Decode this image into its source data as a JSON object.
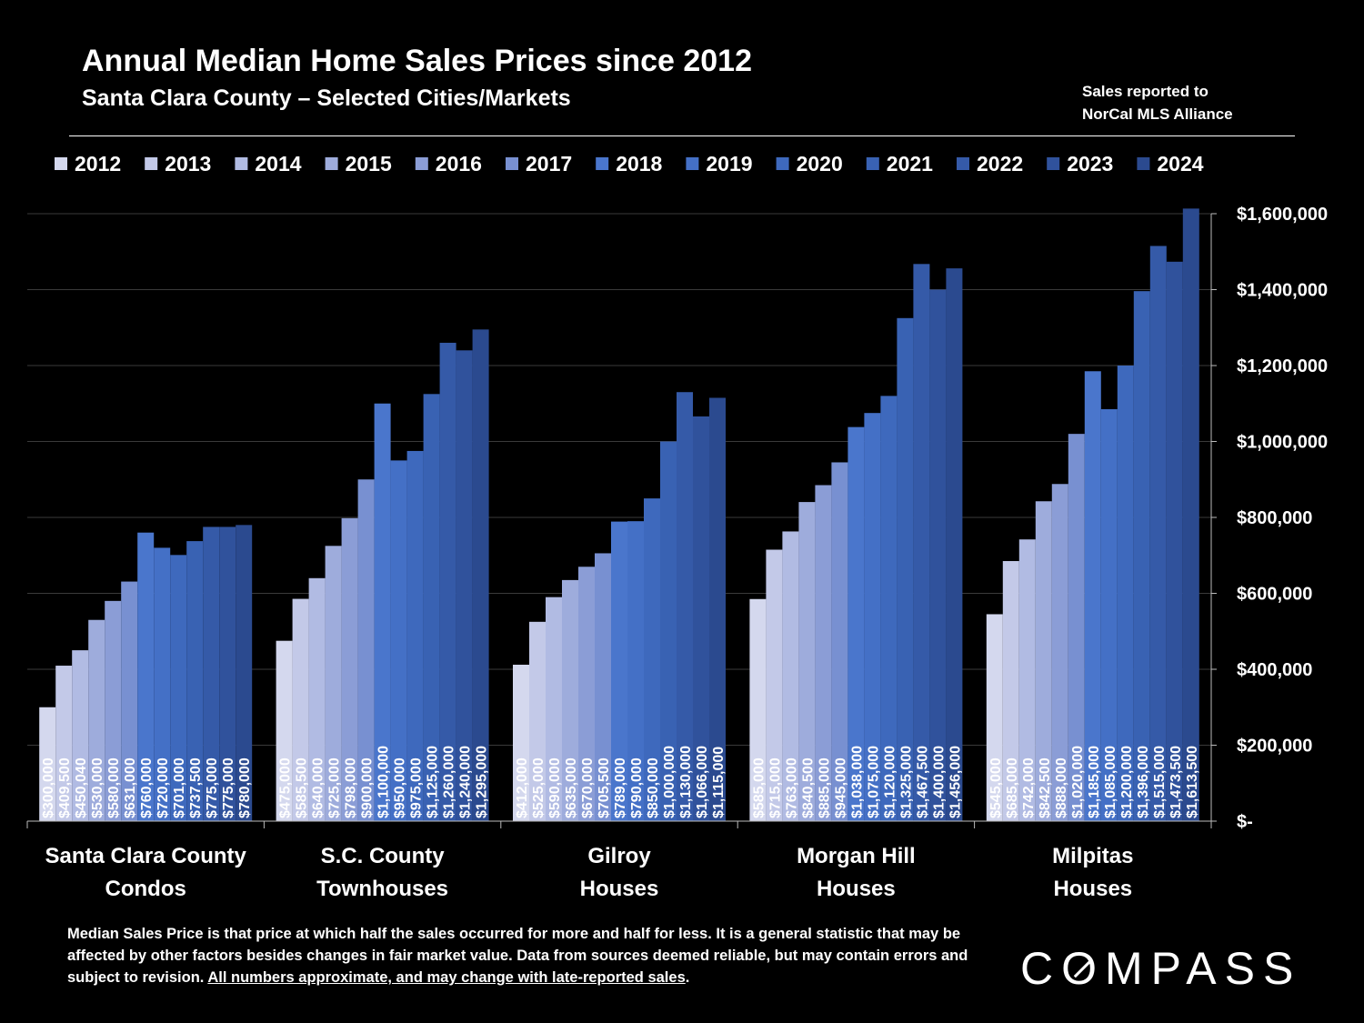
{
  "header": {
    "title": "Annual Median Home Sales Prices since 2012",
    "subtitle": "Santa Clara County – Selected Cities/Markets",
    "source_line1": "Sales reported to",
    "source_line2": "NorCal MLS Alliance"
  },
  "footnote": {
    "text": "Median Sales Price is that price at which half the sales occurred for more and half for less. It is a general statistic that may be affected by other factors besides changes in fair market value. Data from sources deemed reliable, but may contain errors and subject to revision.  ",
    "underlined": "All numbers approximate, and may change with late-reported sales",
    "end": "."
  },
  "logo": {
    "text_left": "C",
    "text_o": "O",
    "text_right": "MPASS"
  },
  "chart_data": {
    "type": "bar",
    "categories": [
      [
        "Santa Clara County",
        "Condos"
      ],
      [
        "S.C. County",
        "Townhouses"
      ],
      [
        "Gilroy",
        "Houses"
      ],
      [
        "Morgan Hill",
        "Houses"
      ],
      [
        "Milpitas",
        "Houses"
      ]
    ],
    "years": [
      "2012",
      "2013",
      "2014",
      "2015",
      "2016",
      "2017",
      "2018",
      "2019",
      "2020",
      "2021",
      "2022",
      "2023",
      "2024"
    ],
    "colors": [
      "#d4d8ee",
      "#c3c9e8",
      "#b1bbe3",
      "#9eacdc",
      "#8b9dd6",
      "#7890d1",
      "#4a76cc",
      "#4470c6",
      "#3e69bd",
      "#3962b3",
      "#355aa8",
      "#30529c",
      "#2b4a8f"
    ],
    "series": [
      {
        "name": "2012",
        "values": [
          300000,
          475000,
          412000,
          585000,
          545000
        ],
        "labels": [
          "$300,000",
          "$475,000",
          "$412,000",
          "$585,000",
          "$545,000"
        ]
      },
      {
        "name": "2013",
        "values": [
          409500,
          585500,
          525000,
          715000,
          685000
        ],
        "labels": [
          "$409,500",
          "$585,500",
          "$525,000",
          "$715,000",
          "$685,000"
        ]
      },
      {
        "name": "2014",
        "values": [
          450040,
          640000,
          590000,
          763000,
          742000
        ],
        "labels": [
          "$450,040",
          "$640,000",
          "$590,000",
          "$763,000",
          "$742,000"
        ]
      },
      {
        "name": "2015",
        "values": [
          530000,
          725000,
          635000,
          840500,
          842500
        ],
        "labels": [
          "$530,000",
          "$725,000",
          "$635,000",
          "$840,500",
          "$842,500"
        ]
      },
      {
        "name": "2016",
        "values": [
          580000,
          798000,
          670000,
          885000,
          888000
        ],
        "labels": [
          "$580,000",
          "$798,000",
          "$670,000",
          "$885,000",
          "$888,000"
        ]
      },
      {
        "name": "2017",
        "values": [
          631000,
          900000,
          705500,
          945000,
          1020000
        ],
        "labels": [
          "$631,000",
          "$900,000",
          "$705,500",
          "$945,000",
          "$1,020,000"
        ]
      },
      {
        "name": "2018",
        "values": [
          760000,
          1100000,
          789000,
          1038000,
          1185000
        ],
        "labels": [
          "$760,000",
          "$1,100,000",
          "$789,000",
          "$1,038,000",
          "$1,185,000"
        ]
      },
      {
        "name": "2019",
        "values": [
          720000,
          950000,
          790000,
          1075000,
          1085000
        ],
        "labels": [
          "$720,000",
          "$950,000",
          "$790,000",
          "$1,075,000",
          "$1,085,000"
        ]
      },
      {
        "name": "2020",
        "values": [
          701000,
          975000,
          850000,
          1120000,
          1200000
        ],
        "labels": [
          "$701,000",
          "$975,000",
          "$850,000",
          "$1,120,000",
          "$1,200,000"
        ]
      },
      {
        "name": "2021",
        "values": [
          737500,
          1125000,
          1000000,
          1325000,
          1396000
        ],
        "labels": [
          "$737,500",
          "$1,125,000",
          "$1,000,000",
          "$1,325,000",
          "$1,396,000"
        ]
      },
      {
        "name": "2022",
        "values": [
          775000,
          1260000,
          1130000,
          1467500,
          1515000
        ],
        "labels": [
          "$775,000",
          "$1,260,000",
          "$1,130,000",
          "$1,467,500",
          "$1,515,000"
        ]
      },
      {
        "name": "2023",
        "values": [
          775000,
          1240000,
          1066000,
          1400000,
          1473500
        ],
        "labels": [
          "$775,000",
          "$1,240,000",
          "$1,066,000",
          "$1,400,000",
          "$1,473,500"
        ]
      },
      {
        "name": "2024",
        "values": [
          780000,
          1295000,
          1115000,
          1456000,
          1613500
        ],
        "labels": [
          "$780,000",
          "$1,295,000",
          "$1,115,000",
          "$1,456,000",
          "$1,613,500"
        ]
      }
    ],
    "yticks": [
      0,
      200000,
      400000,
      600000,
      800000,
      1000000,
      1200000,
      1400000,
      1600000
    ],
    "ytick_labels": [
      "$-",
      "$200,000",
      "$400,000",
      "$600,000",
      "$800,000",
      "$1,000,000",
      "$1,200,000",
      "$1,400,000",
      "$1,600,000"
    ],
    "ylim": [
      0,
      1600000
    ],
    "y_axis_side": "right",
    "grid": true,
    "legend_placement": "top"
  }
}
